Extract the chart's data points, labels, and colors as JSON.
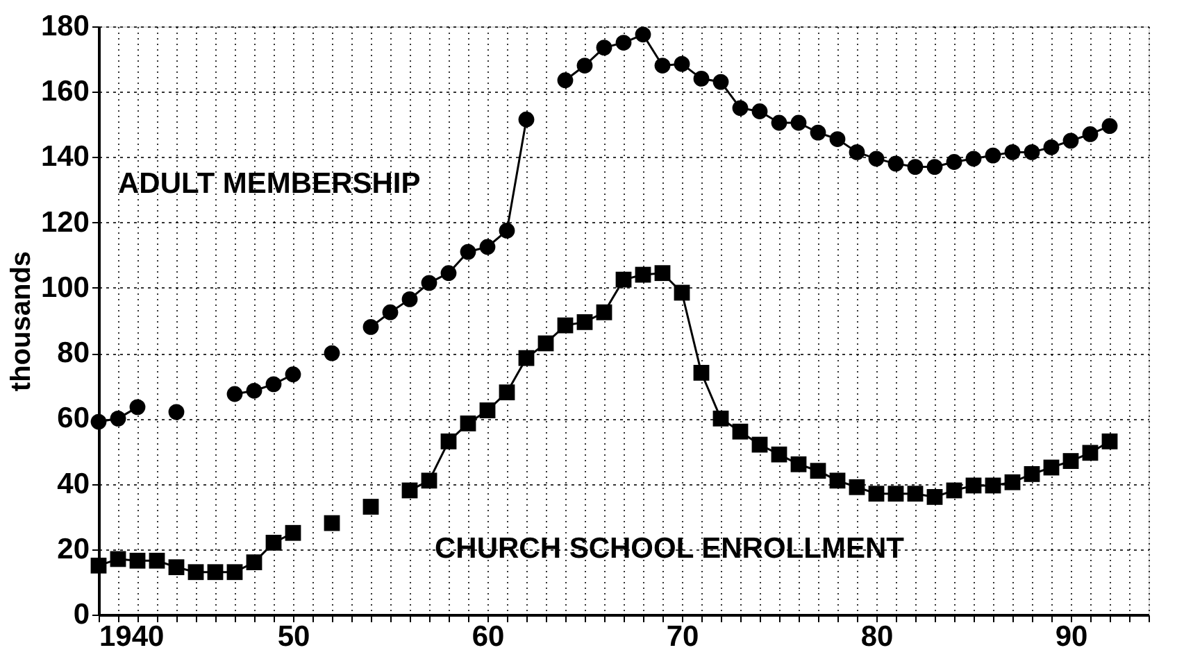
{
  "chart_data": {
    "type": "line",
    "ylabel": "thousands",
    "x": [
      1940,
      1941,
      1942,
      1943,
      1944,
      1945,
      1946,
      1947,
      1948,
      1949,
      1950,
      1951,
      1952,
      1953,
      1954,
      1955,
      1956,
      1957,
      1958,
      1959,
      1960,
      1961,
      1962,
      1963,
      1964,
      1965,
      1966,
      1967,
      1968,
      1969,
      1970,
      1971,
      1972,
      1973,
      1974,
      1975,
      1976,
      1977,
      1978,
      1979,
      1980,
      1981,
      1982,
      1983,
      1984,
      1985,
      1986,
      1987,
      1988,
      1989,
      1990,
      1991,
      1992
    ],
    "series": [
      {
        "name": "ADULT MEMBERSHIP",
        "color": "#000000",
        "marker": "circle",
        "values": [
          59,
          60,
          63.5,
          null,
          62,
          null,
          null,
          67.5,
          68.5,
          70.5,
          73.5,
          null,
          80,
          null,
          88,
          92.5,
          96.5,
          101.5,
          104.5,
          111,
          112.5,
          117.5,
          151.5,
          null,
          163.5,
          168,
          173.5,
          175,
          177.5,
          168,
          168.5,
          164,
          163,
          155,
          154,
          150.5,
          150.5,
          147.5,
          145.5,
          141.5,
          139.5,
          138,
          137,
          137,
          138.5,
          139.5,
          140.5,
          141.5,
          141.5,
          143,
          145,
          147,
          149.5
        ]
      },
      {
        "name": "CHURCH SCHOOL ENROLLMENT",
        "color": "#000000",
        "marker": "square",
        "values": [
          15,
          17,
          16.5,
          16.5,
          14.5,
          13,
          13,
          13,
          16,
          22,
          25,
          null,
          28,
          null,
          33,
          null,
          38,
          41,
          53,
          58.5,
          62.5,
          68,
          78.5,
          83,
          88.5,
          89.5,
          92.5,
          102.5,
          104,
          104.5,
          98.5,
          74,
          60,
          56,
          52,
          49,
          46,
          44,
          41,
          39,
          37,
          37,
          37,
          36,
          38,
          39.5,
          39.5,
          40.5,
          43,
          45,
          47,
          49.5,
          53
        ]
      }
    ],
    "xlim": [
      1940,
      1994
    ],
    "xticks": [
      {
        "value": 1940,
        "label": "1940"
      },
      {
        "value": 1941,
        "label": null
      },
      {
        "value": 1942,
        "label": null
      },
      {
        "value": 1943,
        "label": null
      },
      {
        "value": 1944,
        "label": null
      },
      {
        "value": 1945,
        "label": null
      },
      {
        "value": 1946,
        "label": null
      },
      {
        "value": 1947,
        "label": null
      },
      {
        "value": 1948,
        "label": null
      },
      {
        "value": 1949,
        "label": null
      },
      {
        "value": 1950,
        "label": "50"
      },
      {
        "value": 1951,
        "label": null
      },
      {
        "value": 1952,
        "label": null
      },
      {
        "value": 1953,
        "label": null
      },
      {
        "value": 1954,
        "label": null
      },
      {
        "value": 1955,
        "label": null
      },
      {
        "value": 1956,
        "label": null
      },
      {
        "value": 1957,
        "label": null
      },
      {
        "value": 1958,
        "label": null
      },
      {
        "value": 1959,
        "label": null
      },
      {
        "value": 1960,
        "label": "60"
      },
      {
        "value": 1961,
        "label": null
      },
      {
        "value": 1962,
        "label": null
      },
      {
        "value": 1963,
        "label": null
      },
      {
        "value": 1964,
        "label": null
      },
      {
        "value": 1965,
        "label": null
      },
      {
        "value": 1966,
        "label": null
      },
      {
        "value": 1967,
        "label": null
      },
      {
        "value": 1968,
        "label": null
      },
      {
        "value": 1969,
        "label": null
      },
      {
        "value": 1970,
        "label": "70"
      },
      {
        "value": 1971,
        "label": null
      },
      {
        "value": 1972,
        "label": null
      },
      {
        "value": 1973,
        "label": null
      },
      {
        "value": 1974,
        "label": null
      },
      {
        "value": 1975,
        "label": null
      },
      {
        "value": 1976,
        "label": null
      },
      {
        "value": 1977,
        "label": null
      },
      {
        "value": 1978,
        "label": null
      },
      {
        "value": 1979,
        "label": null
      },
      {
        "value": 1980,
        "label": "80"
      },
      {
        "value": 1981,
        "label": null
      },
      {
        "value": 1982,
        "label": null
      },
      {
        "value": 1983,
        "label": null
      },
      {
        "value": 1984,
        "label": null
      },
      {
        "value": 1985,
        "label": null
      },
      {
        "value": 1986,
        "label": null
      },
      {
        "value": 1987,
        "label": null
      },
      {
        "value": 1988,
        "label": null
      },
      {
        "value": 1989,
        "label": null
      },
      {
        "value": 1990,
        "label": "90"
      },
      {
        "value": 1991,
        "label": null
      },
      {
        "value": 1992,
        "label": null
      },
      {
        "value": 1993,
        "label": null
      },
      {
        "value": 1994,
        "label": null
      }
    ],
    "ylim": [
      0,
      180
    ],
    "yticks": [
      0,
      20,
      40,
      60,
      80,
      100,
      120,
      140,
      160,
      180
    ],
    "grid": true,
    "line_style": "solid",
    "legend": false
  }
}
